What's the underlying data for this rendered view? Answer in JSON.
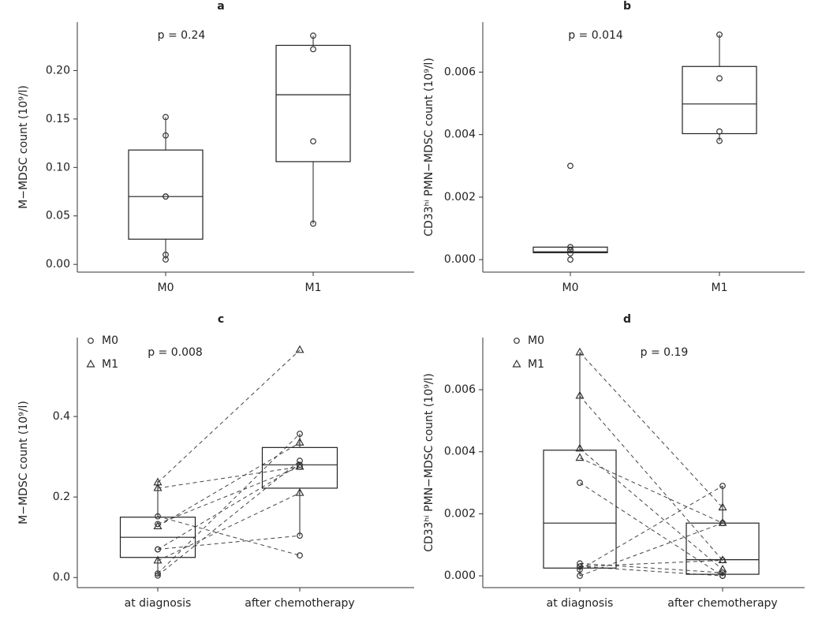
{
  "chart_data": [
    {
      "type": "box",
      "title": "a",
      "annotation": "p = 0.24",
      "y_label": "M−MDSC count  (10⁹/l)",
      "categories": [
        "M0",
        "M1"
      ],
      "boxes": [
        {
          "whisker_low": 0.005,
          "q1": 0.026,
          "median": 0.07,
          "q3": 0.118,
          "whisker_high": 0.152
        },
        {
          "whisker_low": 0.042,
          "q1": 0.106,
          "median": 0.175,
          "q3": 0.226,
          "whisker_high": 0.236
        }
      ],
      "points": [
        [
          0.005,
          0.01,
          0.07,
          0.07,
          0.133,
          0.152
        ],
        [
          0.042,
          0.127,
          0.222,
          0.236
        ]
      ],
      "ylim": [
        -0.008,
        0.25
      ],
      "yticks": [
        {
          "value": 0,
          "label": "0.00"
        },
        {
          "value": 0.05,
          "label": "0.05"
        },
        {
          "value": 0.1,
          "label": "0.10"
        },
        {
          "value": 0.15,
          "label": "0.15"
        },
        {
          "value": 0.2,
          "label": "0.20"
        }
      ]
    },
    {
      "type": "box",
      "title": "b",
      "annotation": "p = 0.014",
      "y_label": "CD33ʰⁱ PMN−MDSC count  (10⁹/l)",
      "categories": [
        "M0",
        "M1"
      ],
      "boxes": [
        {
          "whisker_low": 0.0002,
          "q1": 0.00022,
          "median": 0.00025,
          "q3": 0.0004,
          "whisker_high": 0.0004
        },
        {
          "whisker_low": 0.0038,
          "q1": 0.00403,
          "median": 0.00498,
          "q3": 0.00618,
          "whisker_high": 0.0072
        }
      ],
      "points": [
        [
          0,
          0.0002,
          0.0003,
          0.0004,
          0.0003,
          0.003
        ],
        [
          0.0038,
          0.0041,
          0.0058,
          0.0072
        ]
      ],
      "ylim": [
        -0.0004,
        0.0076
      ],
      "yticks": [
        {
          "value": 0,
          "label": "0.000"
        },
        {
          "value": 0.002,
          "label": "0.002"
        },
        {
          "value": 0.004,
          "label": "0.004"
        },
        {
          "value": 0.006,
          "label": "0.006"
        }
      ]
    },
    {
      "type": "paired_box",
      "title": "c",
      "annotation": "p = 0.008",
      "y_label": "M−MDSC count  (10⁹/l)",
      "categories": [
        "at diagnosis",
        "after chemotherapy"
      ],
      "boxes": [
        {
          "whisker_low": 0.005,
          "q1": 0.05,
          "median": 0.1,
          "q3": 0.15,
          "whisker_high": 0.24
        },
        {
          "whisker_low": 0.104,
          "q1": 0.222,
          "median": 0.28,
          "q3": 0.323,
          "whisker_high": 0.357
        }
      ],
      "series": [
        {
          "name": "M0",
          "marker": "circle",
          "values": [
            [
              0.005,
              0.29
            ],
            [
              0.01,
              0.357
            ],
            [
              0.07,
              0.28
            ],
            [
              0.07,
              0.104
            ],
            [
              0.133,
              0.275
            ],
            [
              0.152,
              0.055
            ]
          ]
        },
        {
          "name": "M1",
          "marker": "triangle",
          "values": [
            [
              0.042,
              0.21
            ],
            [
              0.127,
              0.335
            ],
            [
              0.222,
              0.275
            ],
            [
              0.236,
              0.565
            ]
          ]
        }
      ],
      "ylim": [
        -0.025,
        0.596
      ],
      "yticks": [
        {
          "value": 0,
          "label": "0.0"
        },
        {
          "value": 0.2,
          "label": "0.2"
        },
        {
          "value": 0.4,
          "label": "0.4"
        }
      ]
    },
    {
      "type": "paired_box",
      "title": "d",
      "annotation": "p = 0.19",
      "y_label": "CD33ʰⁱ PMN−MDSC count  (10⁹/l)",
      "categories": [
        "at diagnosis",
        "after chemotherapy"
      ],
      "boxes": [
        {
          "whisker_low": 0,
          "q1": 0.00025,
          "median": 0.0017,
          "q3": 0.00405,
          "whisker_high": 0.0072
        },
        {
          "whisker_low": 0,
          "q1": 5e-05,
          "median": 0.00052,
          "q3": 0.0017,
          "whisker_high": 0.0029
        }
      ],
      "series": [
        {
          "name": "M0",
          "marker": "circle",
          "values": [
            [
              0,
              0.0017
            ],
            [
              0.0002,
              0.0029
            ],
            [
              0.0003,
              0
            ],
            [
              0.0004,
              0.0001
            ],
            [
              0.0003,
              0.0005
            ],
            [
              0.003,
              0
            ]
          ]
        },
        {
          "name": "M1",
          "marker": "triangle",
          "values": [
            [
              0.0038,
              0.0017
            ],
            [
              0.0041,
              0.0002
            ],
            [
              0.0058,
              0.0005
            ],
            [
              0.0072,
              0.0022
            ]
          ]
        }
      ],
      "ylim": [
        -0.00038,
        0.00768
      ],
      "yticks": [
        {
          "value": 0,
          "label": "0.000"
        },
        {
          "value": 0.002,
          "label": "0.002"
        },
        {
          "value": 0.004,
          "label": "0.004"
        },
        {
          "value": 0.006,
          "label": "0.006"
        }
      ]
    }
  ]
}
